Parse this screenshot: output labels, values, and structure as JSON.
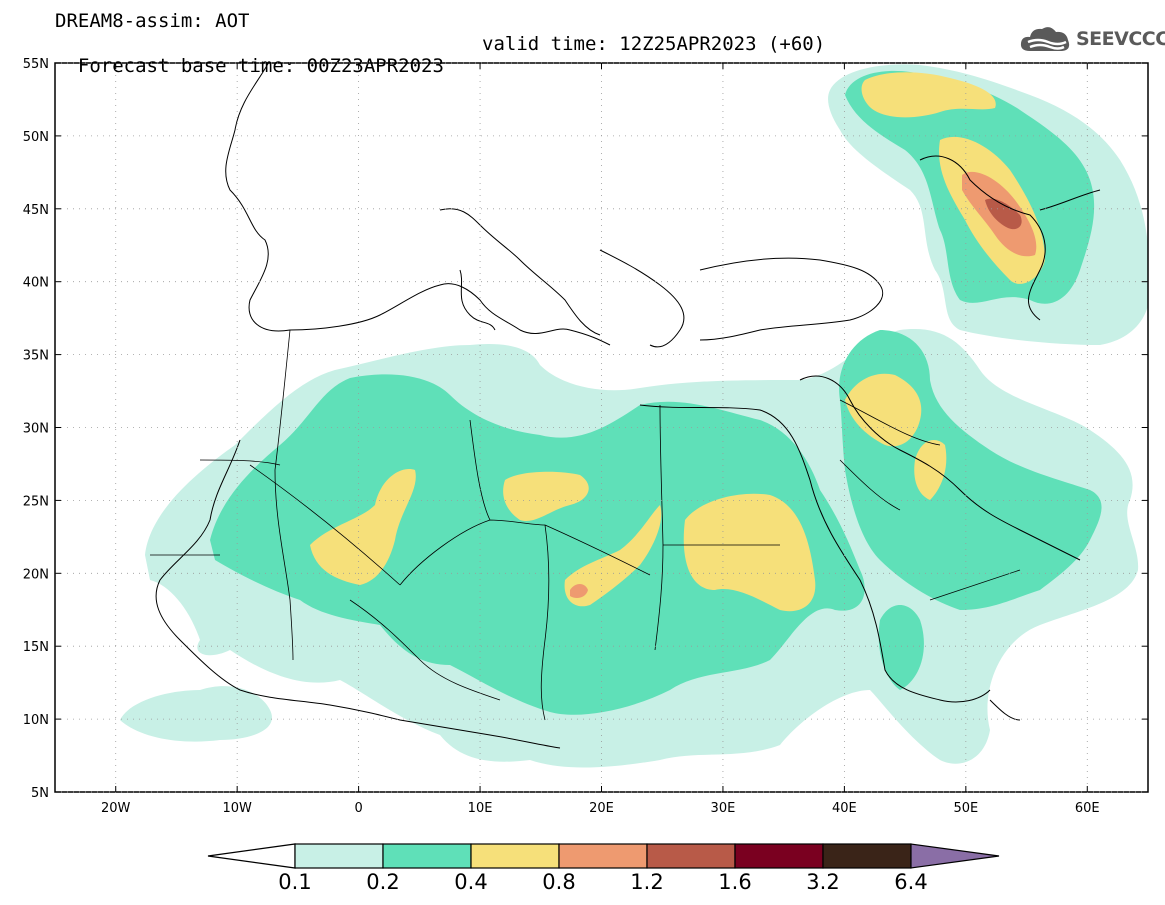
{
  "header": {
    "title": "DREAM8-assim: AOT",
    "base_time_label": "Forecast base time: 00Z23APR2023",
    "valid_time_label": "valid time: 12Z25APR2023 (+60)"
  },
  "logo": {
    "text": "SEEVCCC",
    "icon": "cloud-icon"
  },
  "map": {
    "lon_range": [
      -25,
      65
    ],
    "lat_range": [
      5,
      55
    ],
    "lon_ticks": [
      {
        "v": -20,
        "label": "20W"
      },
      {
        "v": -10,
        "label": "10W"
      },
      {
        "v": 0,
        "label": "0"
      },
      {
        "v": 10,
        "label": "10E"
      },
      {
        "v": 20,
        "label": "20E"
      },
      {
        "v": 30,
        "label": "30E"
      },
      {
        "v": 40,
        "label": "40E"
      },
      {
        "v": 50,
        "label": "50E"
      },
      {
        "v": 60,
        "label": "60E"
      }
    ],
    "lat_ticks": [
      {
        "v": 55,
        "label": "55N"
      },
      {
        "v": 50,
        "label": "50N"
      },
      {
        "v": 45,
        "label": "45N"
      },
      {
        "v": 40,
        "label": "40N"
      },
      {
        "v": 35,
        "label": "35N"
      },
      {
        "v": 30,
        "label": "30N"
      },
      {
        "v": 25,
        "label": "25N"
      },
      {
        "v": 20,
        "label": "20N"
      },
      {
        "v": 15,
        "label": "15N"
      },
      {
        "v": 10,
        "label": "10N"
      },
      {
        "v": 5,
        "label": "5N"
      }
    ],
    "grid": true
  },
  "colorbar": {
    "bins": [
      {
        "color": "#c8f0e6",
        "label": "0.1"
      },
      {
        "color": "#5fe0b8",
        "label": "0.2"
      },
      {
        "color": "#f6e07a",
        "label": "0.4"
      },
      {
        "color": "#ee9a70",
        "label": "0.8"
      },
      {
        "color": "#b85a48",
        "label": "1.2"
      },
      {
        "color": "#7a0020",
        "label": "1.6"
      },
      {
        "color": "#3a2418",
        "label": "3.2"
      },
      {
        "color": "#8a6ea6",
        "label": "6.4"
      }
    ],
    "under_color": "#ffffff"
  }
}
